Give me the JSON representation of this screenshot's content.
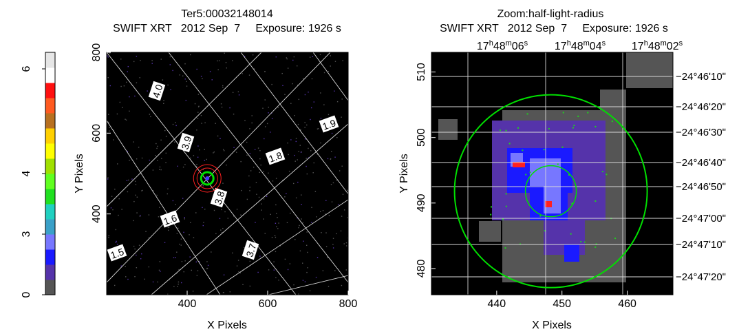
{
  "chart_data": [
    {
      "type": "heatmap",
      "title": "Ter5:00032148014",
      "subtitle": "SWIFT XRT   2012 Sep  7     Exposure: 1926 s",
      "xlabel": "X Pixels",
      "ylabel": "Y Pixels",
      "xlim": [
        200,
        800
      ],
      "ylim": [
        200,
        800
      ],
      "x_ticks": [
        400,
        600,
        800
      ],
      "y_ticks": [
        400,
        600,
        800
      ],
      "grid_labels": [
        "4.0",
        "3.9",
        "3.8",
        "3.7",
        "1.9",
        "1.8",
        "1.6",
        "1.5"
      ],
      "source": {
        "x": 450,
        "y": 488
      }
    },
    {
      "type": "heatmap",
      "title": "Zoom:half-light-radius",
      "subtitle": "SWIFT XRT   2012 Sep  7     Exposure: 1926 s",
      "xlabel": "X Pixels",
      "ylabel": "Y Pixels",
      "xlim": [
        430,
        467
      ],
      "ylim": [
        476,
        513
      ],
      "x_ticks": [
        440,
        450,
        460
      ],
      "y_ticks": [
        480,
        490,
        500,
        510
      ],
      "ra_ticks": [
        {
          "h": "17",
          "m": "48",
          "s": "06"
        },
        {
          "h": "17",
          "m": "48",
          "s": "04"
        },
        {
          "h": "17",
          "m": "48",
          "s": "02"
        }
      ],
      "dec_ticks": [
        "−24°46ʹ10ʺ",
        "−24°46ʹ20ʺ",
        "−24°46ʹ30ʺ",
        "−24°46ʹ40ʺ",
        "−24°46ʹ50ʺ",
        "−24°47ʹ00ʺ",
        "−24°47ʹ10ʺ",
        "−24°47ʹ20ʺ"
      ]
    }
  ],
  "colorbar": {
    "ticks": [
      "0",
      "3",
      "4",
      "6"
    ],
    "colors": [
      "#555555",
      "#5533aa",
      "#1a1aff",
      "#7777ff",
      "#3aa0c8",
      "#20d0c0",
      "#20e020",
      "#60ff20",
      "#a0e000",
      "#ffff00",
      "#ffd000",
      "#b87020",
      "#ff5a20",
      "#ff1010",
      "#ffffff",
      "#e6e6e6"
    ]
  }
}
